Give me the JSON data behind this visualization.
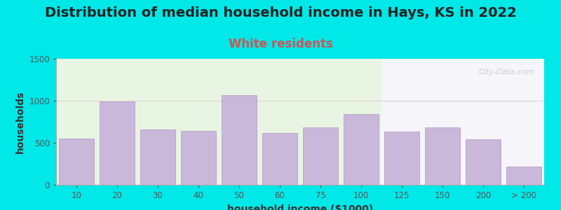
{
  "title": "Distribution of median household income in Hays, KS in 2022",
  "subtitle": "White residents",
  "xlabel": "household income ($1000)",
  "ylabel": "households",
  "bar_labels": [
    "10",
    "20",
    "30",
    "40",
    "50",
    "60",
    "75",
    "100",
    "125",
    "150",
    "200",
    "> 200"
  ],
  "bar_values": [
    550,
    990,
    655,
    645,
    1065,
    620,
    680,
    845,
    635,
    680,
    540,
    220
  ],
  "bar_color": "#c9b8da",
  "bar_edge_color": "#b8a0cc",
  "ylim": [
    0,
    1500
  ],
  "yticks": [
    0,
    500,
    1000,
    1500
  ],
  "bg_outer": "#00e8e8",
  "bg_plot_green": "#e8f5e2",
  "bg_plot_white": "#f5f5fa",
  "title_fontsize": 14,
  "subtitle_fontsize": 12,
  "subtitle_color": "#cc5555",
  "axis_label_fontsize": 10,
  "tick_fontsize": 8.5,
  "watermark_text": "City-Data.com",
  "watermark_color": "#c8d0d8",
  "gridline_color": "#e8d0d0",
  "title_color": "#222222"
}
